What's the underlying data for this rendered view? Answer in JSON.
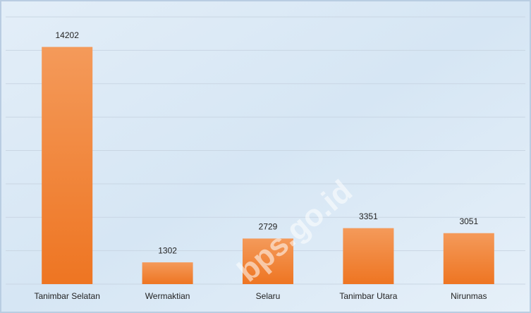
{
  "chart_data": {
    "type": "bar",
    "categories": [
      "Tanimbar Selatan",
      "Wermaktian",
      "Selaru",
      "Tanimbar Utara",
      "Nirunmas"
    ],
    "values": [
      14202,
      1302,
      2729,
      3351,
      3051
    ],
    "color": "#f0822c",
    "ylim": [
      0,
      16000
    ],
    "yticks": [
      0,
      2000,
      4000,
      6000,
      8000,
      10000,
      12000,
      14000,
      16000
    ],
    "grid": true,
    "data_labels": true,
    "watermark": "bps.go.id"
  }
}
